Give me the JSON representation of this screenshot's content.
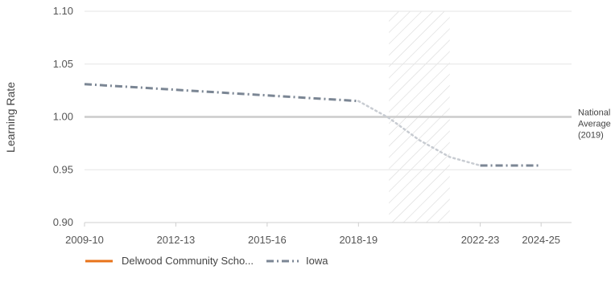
{
  "chart_data": {
    "type": "line",
    "title": "",
    "xlabel": "",
    "ylabel": "Learning Rate",
    "ylim": [
      0.9,
      1.1
    ],
    "yticks": [
      "0.90",
      "0.95",
      "1.00",
      "1.05",
      "1.10"
    ],
    "ytick_values": [
      0.9,
      0.95,
      1.0,
      1.05,
      1.1
    ],
    "x_range": [
      2009,
      2025
    ],
    "xticks": [
      {
        "label": "2009-10",
        "x": 2009
      },
      {
        "label": "2012-13",
        "x": 2012
      },
      {
        "label": "2015-16",
        "x": 2015
      },
      {
        "label": "2018-19",
        "x": 2018
      },
      {
        "label": "2022-23",
        "x": 2022
      },
      {
        "label": "2024-25",
        "x": 2024
      }
    ],
    "grid": true,
    "reference_line": {
      "y": 1.0,
      "label_lines": [
        "National",
        "Average",
        "(2019)"
      ],
      "color": "#cccccc"
    },
    "shaded_period": {
      "x_start": 2019,
      "x_end": 2021,
      "hatch": true,
      "color": "#d8d8d8"
    },
    "series": [
      {
        "name": "Delwood Community Scho...",
        "color": "#e8731a",
        "style": "solid",
        "points": []
      },
      {
        "name": "Iowa",
        "color": "#7b8694",
        "style": "dashed",
        "points": [
          {
            "x": 2009,
            "y": 1.031
          },
          {
            "x": 2018,
            "y": 1.015
          },
          {
            "x": 2022,
            "y": 0.954
          },
          {
            "x": 2024,
            "y": 0.954
          }
        ],
        "gap": {
          "color": "#c8ccd2",
          "points": [
            {
              "x": 2018,
              "y": 1.015
            },
            {
              "x": 2019,
              "y": 0.999
            },
            {
              "x": 2020,
              "y": 0.978
            },
            {
              "x": 2021,
              "y": 0.962
            },
            {
              "x": 2022,
              "y": 0.954
            }
          ]
        }
      }
    ],
    "legend": {
      "placement": "bottom-left",
      "items": [
        {
          "label": "Delwood Community Scho...",
          "color": "#e8731a",
          "style": "solid"
        },
        {
          "label": "Iowa",
          "color": "#7b8694",
          "style": "dashed"
        }
      ]
    }
  }
}
